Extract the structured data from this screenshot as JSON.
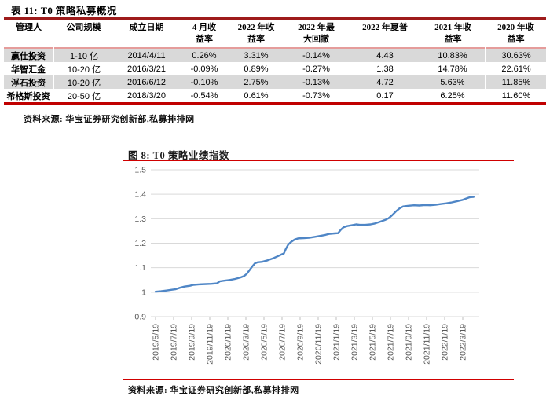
{
  "table_section": {
    "title": "表 11: T0 策略私募概况",
    "source": "资料来源: 华宝证券研究创新部,私募排排网",
    "columns": [
      [
        "管理人"
      ],
      [
        "公司规模"
      ],
      [
        "成立日期"
      ],
      [
        "4 月收",
        "益率"
      ],
      [
        "2022 年收",
        "益率"
      ],
      [
        "2022 年最",
        "大回撤"
      ],
      [
        "2022 年夏普"
      ],
      [
        "2021 年收",
        "益率"
      ],
      [
        "2020 年收",
        "益率"
      ]
    ],
    "rows": [
      [
        "赢仕投资",
        "1-10 亿",
        "2014/4/11",
        "0.26%",
        "3.31%",
        "-0.14%",
        "4.43",
        "10.83%",
        "30.63%"
      ],
      [
        "华智汇金",
        "10-20 亿",
        "2016/3/21",
        "-0.09%",
        "0.89%",
        "-0.27%",
        "1.38",
        "14.78%",
        "22.61%"
      ],
      [
        "浮石投资",
        "10-20 亿",
        "2016/6/12",
        "-0.10%",
        "2.75%",
        "-0.13%",
        "4.72",
        "5.63%",
        "11.85%"
      ],
      [
        "希格斯投资",
        "20-50 亿",
        "2018/3/20",
        "-0.54%",
        "0.61%",
        "-0.73%",
        "0.17",
        "6.25%",
        "11.60%"
      ]
    ]
  },
  "chart_section": {
    "title": "图 8: T0 策略业绩指数",
    "source": "资料来源: 华宝证券研究创新部,私募排排网"
  },
  "chart_data": {
    "type": "line",
    "title": "T0 策略业绩指数",
    "legend": "none",
    "grid": "horizontal",
    "line_color": "#4f86c6",
    "axis_text_color": "#595959",
    "gridline_color": "#d9d9d9",
    "ylim": [
      0.9,
      1.5
    ],
    "y_ticks": [
      "1.5",
      "1.4",
      "1.3",
      "1.2",
      "1.1",
      "1",
      "0.9"
    ],
    "y_tick_values": [
      1.5,
      1.4,
      1.3,
      1.2,
      1.1,
      1.0,
      0.9
    ],
    "x_tick_labels": [
      "2019/5/19",
      "2019/7/19",
      "2019/9/19",
      "2019/11/19",
      "2020/1/19",
      "2020/3/19",
      "2020/5/19",
      "2020/7/19",
      "2020/9/19",
      "2020/11/19",
      "2021/1/19",
      "2021/3/19",
      "2021/5/19",
      "2021/7/19",
      "2021/9/19",
      "2021/11/19",
      "2022/1/19",
      "2022/3/19"
    ],
    "points": [
      [
        0,
        1.002
      ],
      [
        0.3,
        1.004
      ],
      [
        0.6,
        1.007
      ],
      [
        0.9,
        1.01
      ],
      [
        1.1,
        1.012
      ],
      [
        1.35,
        1.018
      ],
      [
        1.6,
        1.023
      ],
      [
        1.9,
        1.026
      ],
      [
        2.1,
        1.03
      ],
      [
        2.4,
        1.032
      ],
      [
        2.8,
        1.033
      ],
      [
        3.1,
        1.034
      ],
      [
        3.4,
        1.036
      ],
      [
        3.55,
        1.044
      ],
      [
        3.8,
        1.047
      ],
      [
        4.1,
        1.05
      ],
      [
        4.4,
        1.054
      ],
      [
        4.7,
        1.06
      ],
      [
        4.9,
        1.066
      ],
      [
        5.05,
        1.075
      ],
      [
        5.2,
        1.09
      ],
      [
        5.35,
        1.105
      ],
      [
        5.5,
        1.118
      ],
      [
        5.65,
        1.122
      ],
      [
        5.9,
        1.124
      ],
      [
        6.2,
        1.13
      ],
      [
        6.5,
        1.138
      ],
      [
        6.8,
        1.148
      ],
      [
        7.0,
        1.155
      ],
      [
        7.1,
        1.158
      ],
      [
        7.2,
        1.175
      ],
      [
        7.35,
        1.195
      ],
      [
        7.5,
        1.205
      ],
      [
        7.7,
        1.215
      ],
      [
        7.9,
        1.22
      ],
      [
        8.2,
        1.221
      ],
      [
        8.5,
        1.222
      ],
      [
        8.8,
        1.226
      ],
      [
        9.1,
        1.23
      ],
      [
        9.4,
        1.234
      ],
      [
        9.6,
        1.238
      ],
      [
        9.9,
        1.24
      ],
      [
        10.1,
        1.241
      ],
      [
        10.25,
        1.255
      ],
      [
        10.4,
        1.265
      ],
      [
        10.6,
        1.27
      ],
      [
        10.9,
        1.274
      ],
      [
        11.1,
        1.277
      ],
      [
        11.3,
        1.275
      ],
      [
        11.6,
        1.275
      ],
      [
        11.9,
        1.277
      ],
      [
        12.1,
        1.28
      ],
      [
        12.4,
        1.287
      ],
      [
        12.7,
        1.295
      ],
      [
        12.9,
        1.302
      ],
      [
        13.1,
        1.315
      ],
      [
        13.3,
        1.33
      ],
      [
        13.5,
        1.342
      ],
      [
        13.7,
        1.35
      ],
      [
        14.0,
        1.353
      ],
      [
        14.3,
        1.355
      ],
      [
        14.6,
        1.354
      ],
      [
        14.9,
        1.356
      ],
      [
        15.2,
        1.355
      ],
      [
        15.5,
        1.357
      ],
      [
        15.8,
        1.36
      ],
      [
        16.1,
        1.363
      ],
      [
        16.4,
        1.367
      ],
      [
        16.7,
        1.372
      ],
      [
        17.0,
        1.377
      ],
      [
        17.2,
        1.383
      ],
      [
        17.4,
        1.388
      ],
      [
        17.6,
        1.389
      ]
    ]
  }
}
